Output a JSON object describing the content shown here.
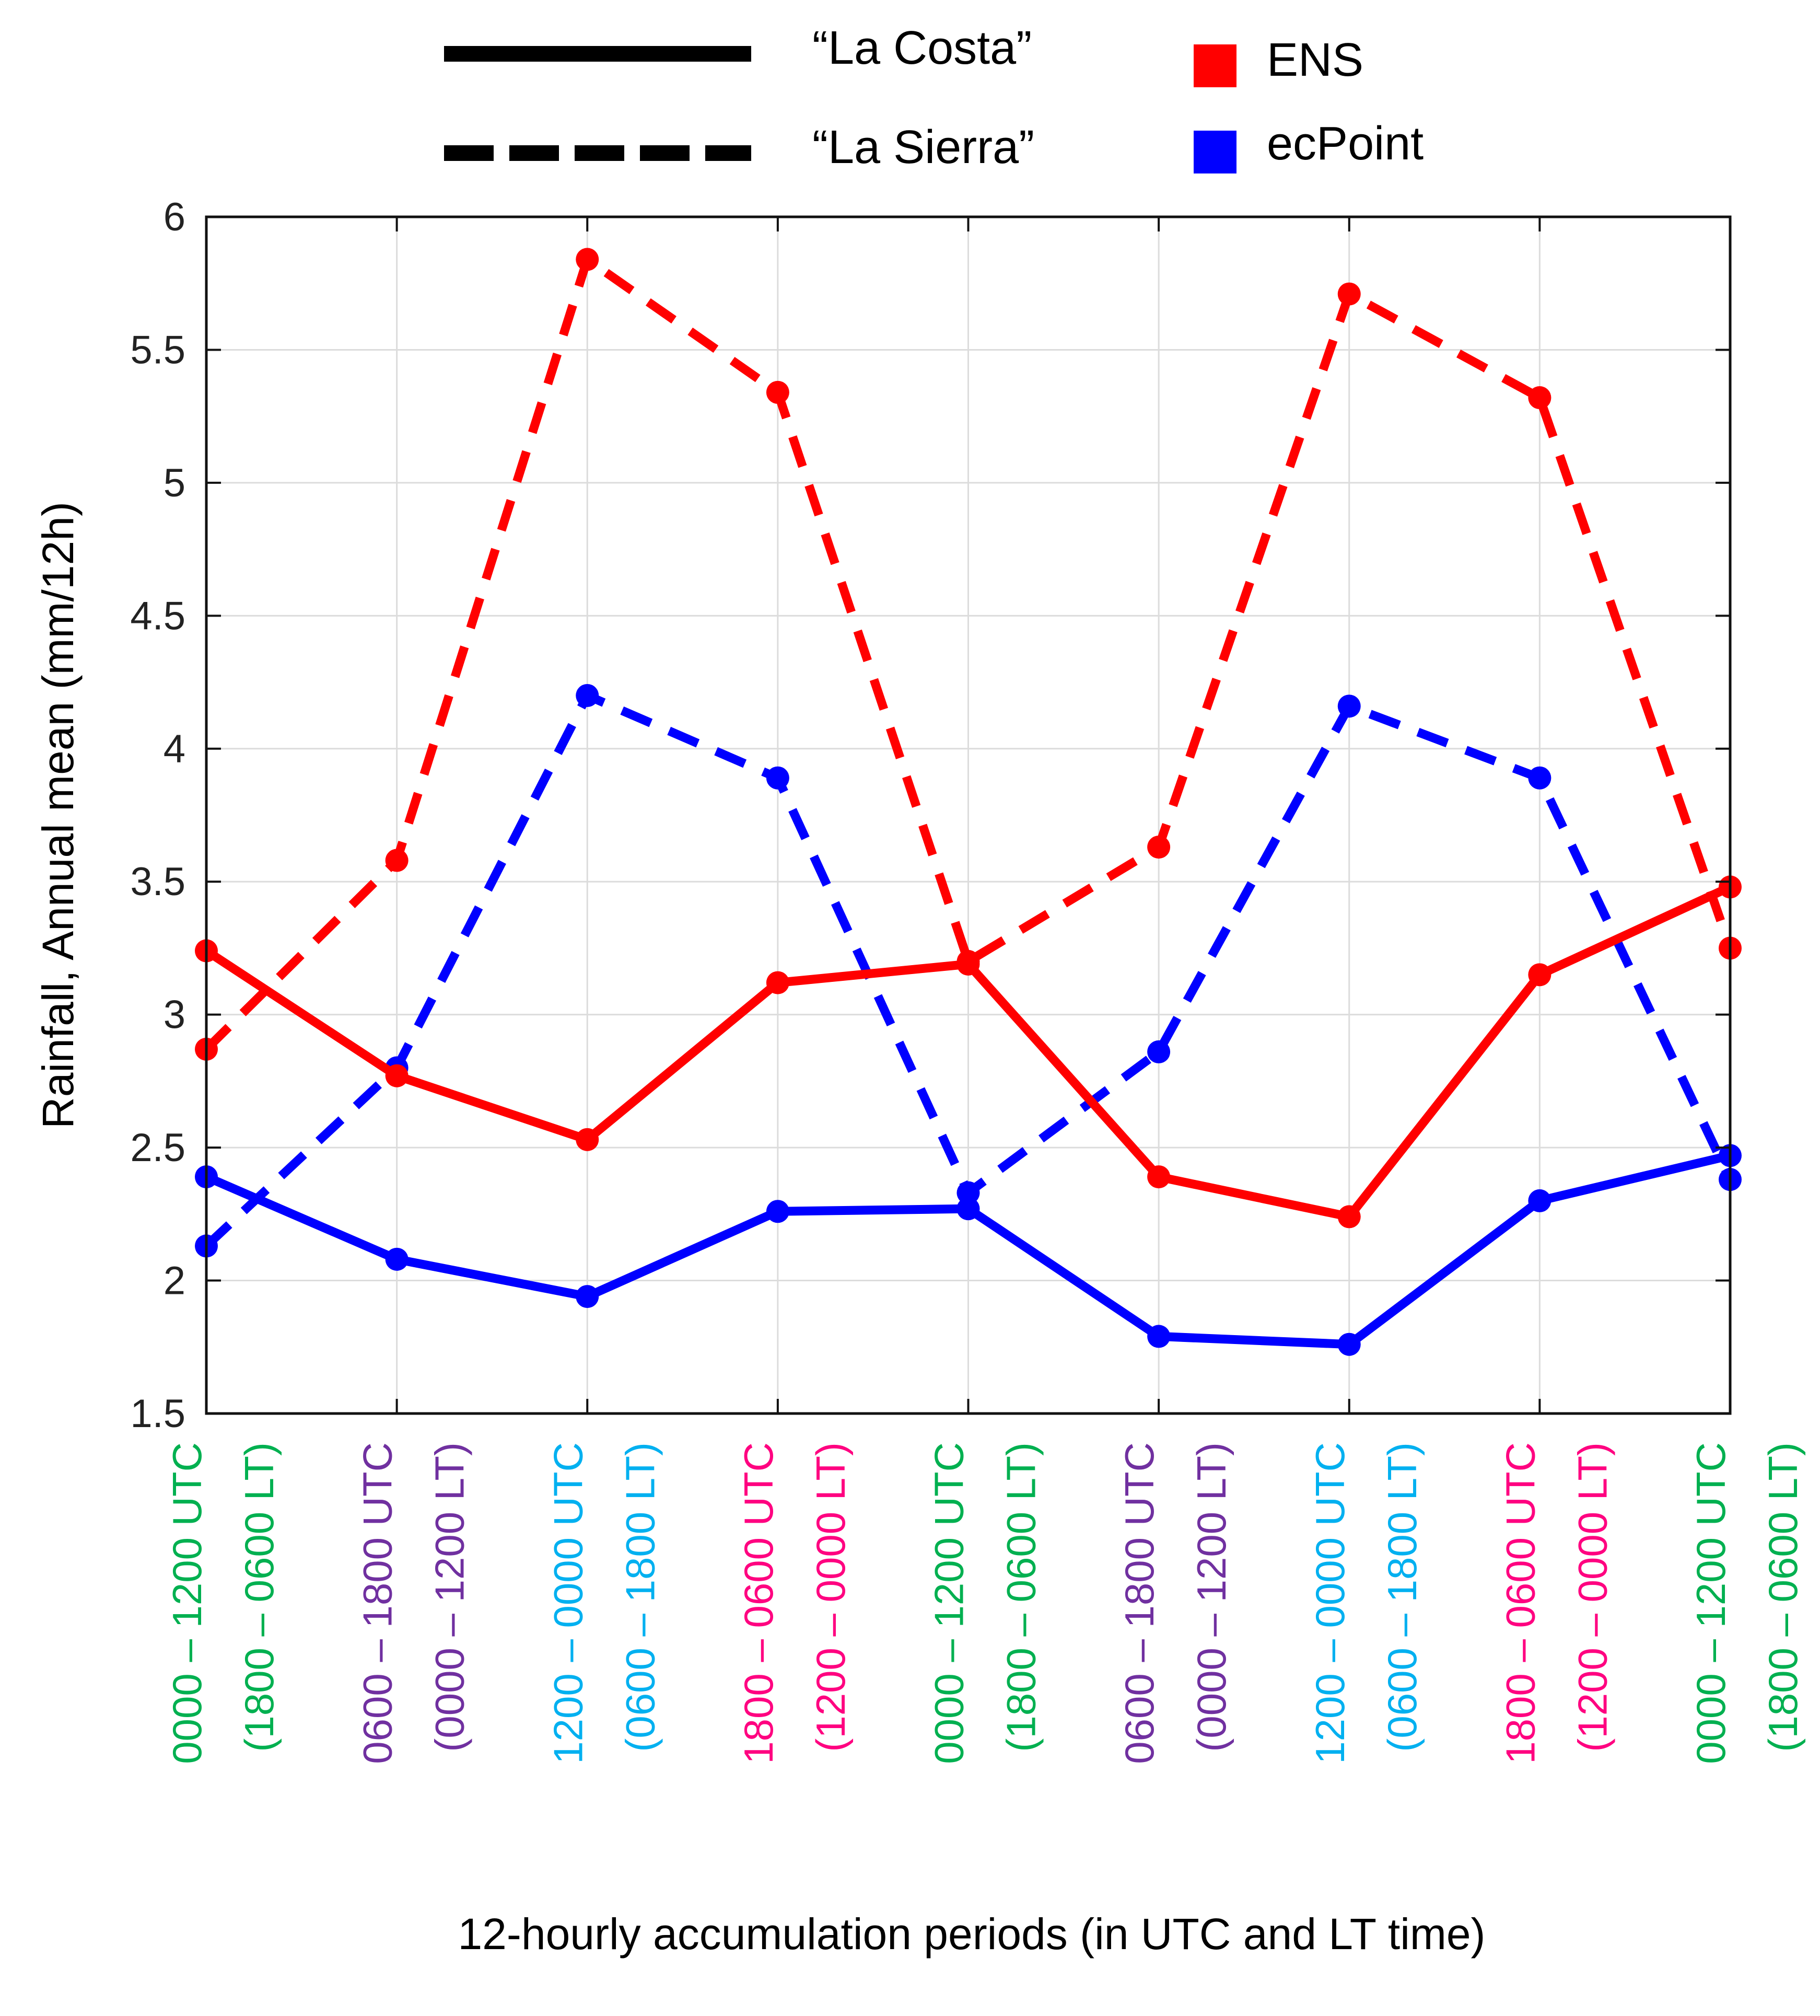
{
  "chart_data": {
    "type": "line",
    "xlabel": "12-hourly accumulation periods (in UTC and LT time)",
    "ylabel": "Rainfall, Annual mean (mm/12h)",
    "ylim": [
      1.5,
      6
    ],
    "yticks": [
      "1.5",
      "2",
      "2.5",
      "3",
      "3.5",
      "4",
      "4.5",
      "5",
      "5.5",
      "6"
    ],
    "grid": true,
    "categories": [
      {
        "utc": "0000 – 1200 UTC",
        "lt": "(1800 – 0600 LT)",
        "color": "#00b050"
      },
      {
        "utc": "0600 – 1800 UTC",
        "lt": "(0000 – 1200 LT)",
        "color": "#7030a0"
      },
      {
        "utc": "1200 – 0000 UTC",
        "lt": "(0600 – 1800 LT)",
        "color": "#00b0f0"
      },
      {
        "utc": "1800 – 0600 UTC",
        "lt": "(1200 – 0000 LT)",
        "color": "#ff0080"
      },
      {
        "utc": "0000 – 1200 UTC",
        "lt": "(1800 – 0600 LT)",
        "color": "#00b050"
      },
      {
        "utc": "0600 – 1800 UTC",
        "lt": "(0000 – 1200 LT)",
        "color": "#7030a0"
      },
      {
        "utc": "1200 – 0000 UTC",
        "lt": "(0600 – 1800 LT)",
        "color": "#00b0f0"
      },
      {
        "utc": "1800 – 0600 UTC",
        "lt": "(1200 – 0000 LT)",
        "color": "#ff0080"
      },
      {
        "utc": "0000 – 1200 UTC",
        "lt": "(1800 – 0600 LT)",
        "color": "#00b050"
      }
    ],
    "legend": {
      "line_styles": [
        {
          "label": "“La Costa”",
          "style": "solid"
        },
        {
          "label": "“La Sierra”",
          "style": "dashed"
        }
      ],
      "colors": [
        {
          "label": "ENS",
          "color": "#ff0000"
        },
        {
          "label": "ecPoint",
          "color": "#0000ff"
        }
      ]
    },
    "series": [
      {
        "model": "ENS",
        "region": "La Costa",
        "style": "solid",
        "color": "#ff0000",
        "values": [
          3.24,
          2.77,
          2.53,
          3.12,
          3.19,
          2.39,
          2.24,
          3.15,
          3.48
        ]
      },
      {
        "model": "ENS",
        "region": "La Sierra",
        "style": "dashed",
        "color": "#ff0000",
        "values": [
          2.87,
          3.58,
          5.84,
          5.34,
          3.2,
          3.63,
          5.71,
          5.32,
          3.25
        ]
      },
      {
        "model": "ecPoint",
        "region": "La Costa",
        "style": "solid",
        "color": "#0000ff",
        "values": [
          2.39,
          2.08,
          1.94,
          2.26,
          2.27,
          1.79,
          1.76,
          2.3,
          2.47
        ]
      },
      {
        "model": "ecPoint",
        "region": "La Sierra",
        "style": "dashed",
        "color": "#0000ff",
        "values": [
          2.13,
          2.8,
          4.2,
          3.89,
          2.33,
          2.86,
          4.16,
          3.89,
          2.38
        ]
      }
    ]
  }
}
